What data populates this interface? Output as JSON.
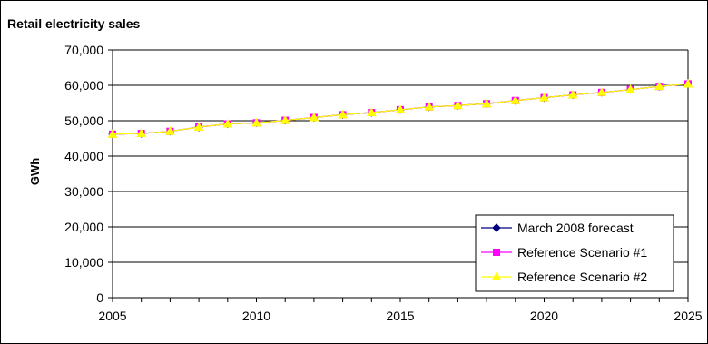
{
  "chart_data": {
    "type": "line",
    "title": "Retail electricity sales",
    "xlabel": "",
    "ylabel": "GWh",
    "xlim": [
      2005,
      2025
    ],
    "ylim": [
      0,
      70000
    ],
    "x_ticks": [
      2005,
      2010,
      2015,
      2020,
      2025
    ],
    "y_ticks": [
      0,
      10000,
      20000,
      30000,
      40000,
      50000,
      60000,
      70000
    ],
    "y_tick_labels": [
      "0",
      "10,000",
      "20,000",
      "30,000",
      "40,000",
      "50,000",
      "60,000",
      "70,000"
    ],
    "grid": "horizontal",
    "legend_position": "bottom-right",
    "x": [
      2005,
      2006,
      2007,
      2008,
      2009,
      2010,
      2011,
      2012,
      2013,
      2014,
      2015,
      2016,
      2017,
      2018,
      2019,
      2020,
      2021,
      2022,
      2023,
      2024,
      2025
    ],
    "series": [
      {
        "name": "March 2008 forecast",
        "color": "#000080",
        "marker": "diamond",
        "values": [
          46200,
          46400,
          47000,
          48200,
          49100,
          49400,
          50100,
          50900,
          51700,
          52300,
          53100,
          53900,
          54300,
          54800,
          55700,
          56500,
          57300,
          58000,
          58800,
          59700,
          60400
        ]
      },
      {
        "name": "Reference Scenario #1",
        "color": "#ff00ff",
        "marker": "square",
        "values": [
          46200,
          46400,
          47000,
          48200,
          49100,
          49400,
          50100,
          50900,
          51700,
          52300,
          53100,
          53900,
          54300,
          54800,
          55700,
          56500,
          57300,
          58000,
          58800,
          59700,
          60400
        ]
      },
      {
        "name": "Reference Scenario #2",
        "color": "#ffff00",
        "marker": "triangle",
        "values": [
          46200,
          46400,
          47000,
          48200,
          49100,
          49400,
          50100,
          50900,
          51700,
          52300,
          53100,
          53900,
          54300,
          54800,
          55700,
          56500,
          57300,
          58000,
          58800,
          59700,
          60400
        ]
      }
    ]
  }
}
